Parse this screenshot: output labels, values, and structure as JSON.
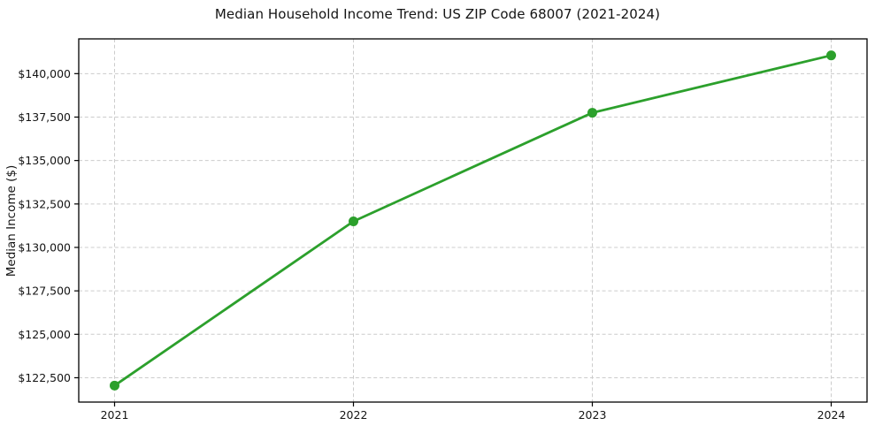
{
  "chart_data": {
    "type": "line",
    "title": "Median Household Income Trend: US ZIP Code 68007 (2021-2024)",
    "xlabel": "",
    "ylabel": "Median Income ($)",
    "x": [
      2021,
      2022,
      2023,
      2024
    ],
    "xtick_labels": [
      "2021",
      "2022",
      "2023",
      "2024"
    ],
    "values": [
      122050,
      131500,
      137750,
      141050
    ],
    "yticks": [
      122500,
      125000,
      127500,
      130000,
      132500,
      135000,
      137500,
      140000
    ],
    "ytick_labels": [
      "$122,500",
      "$125,000",
      "$127,500",
      "$130,000",
      "$132,500",
      "$135,000",
      "$137,500",
      "$140,000"
    ],
    "xlim": [
      2020.85,
      2024.15
    ],
    "ylim": [
      121100,
      142000
    ],
    "grid": true,
    "grid_style": "dashed",
    "legend_position": "none",
    "line_color": "#2ca02c",
    "marker": "circle",
    "grid_color": "#cccccc",
    "axis_color": "#000000",
    "text_color": "#141414"
  }
}
